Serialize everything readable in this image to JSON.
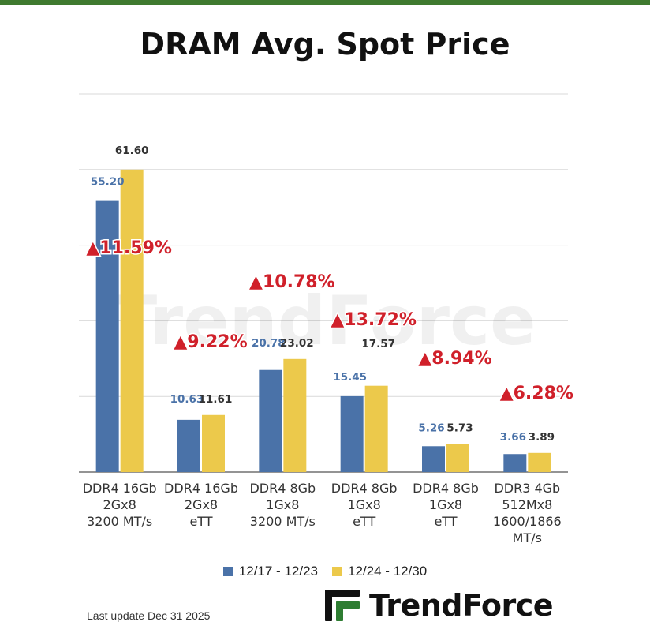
{
  "header": {
    "title": "DRAM Avg. Spot Price"
  },
  "chart_data": {
    "type": "bar",
    "title": "DRAM Avg. Spot Price",
    "xlabel": "",
    "ylabel": "",
    "ylim": [
      0,
      77
    ],
    "grid": true,
    "legend_position": "bottom",
    "categories": [
      [
        "DDR4 16Gb",
        "2Gx8",
        "3200 MT/s"
      ],
      [
        "DDR4 16Gb",
        "2Gx8",
        "eTT"
      ],
      [
        "DDR4 8Gb",
        "1Gx8",
        "3200 MT/s"
      ],
      [
        "DDR4 8Gb",
        "1Gx8",
        "eTT"
      ],
      [
        "DDR4 8Gb",
        "1Gx8",
        "eTT"
      ],
      [
        "DDR3 4Gb",
        "512Mx8",
        "1600/1866",
        "MT/s"
      ]
    ],
    "series": [
      {
        "name": "12/17 - 12/23",
        "color": "#4a72a8",
        "label_color": "#4a72a8",
        "values": [
          55.2,
          10.63,
          20.78,
          15.45,
          5.26,
          3.66
        ],
        "labels": [
          "55.20",
          "10.63",
          "20.78",
          "15.45",
          "5.26",
          "3.66"
        ]
      },
      {
        "name": "12/24 - 12/30",
        "color": "#ecc94b",
        "label_color": "#333333",
        "values": [
          61.6,
          11.61,
          23.02,
          17.57,
          5.73,
          3.89
        ],
        "labels": [
          "61.60",
          "11.61",
          "23.02",
          "17.57",
          "5.73",
          "3.89"
        ]
      }
    ],
    "annotations": [
      "▲11.59%",
      "▲9.22%",
      "▲10.78%",
      "▲13.72%",
      "▲8.94%",
      "▲6.28%"
    ],
    "annotation_color": "#d0202a"
  },
  "footer": {
    "last_update": "Last update Dec 31  2025"
  },
  "brand": {
    "name": "TrendForce",
    "watermark": "TrendForce",
    "logo_color": "#2e7d32"
  }
}
